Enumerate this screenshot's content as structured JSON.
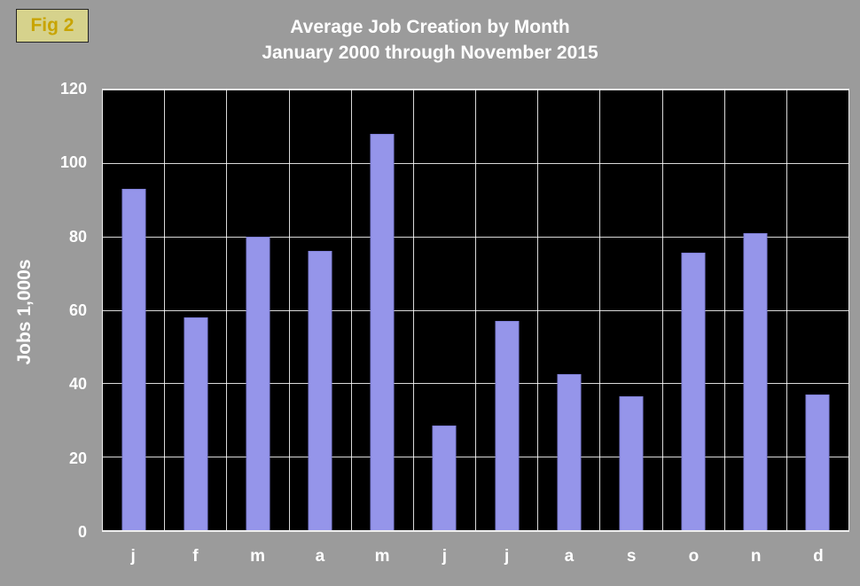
{
  "badge": {
    "label": "Fig 2"
  },
  "chart_data": {
    "type": "bar",
    "title": "Average Job Creation by Month",
    "subtitle": "January 2000 through November 2015",
    "categories": [
      "j",
      "f",
      "m",
      "a",
      "m",
      "j",
      "j",
      "a",
      "s",
      "o",
      "n",
      "d"
    ],
    "values": [
      93,
      58,
      80,
      76,
      108,
      28.5,
      57,
      42.5,
      36.5,
      75.5,
      81,
      37
    ],
    "xlabel": "",
    "ylabel": "Jobs 1,000s",
    "ylim": [
      0,
      120
    ],
    "ytick_step": 20,
    "yticks": [
      120,
      100,
      80,
      60,
      40,
      20,
      0
    ],
    "grid": true,
    "legend": "none",
    "colors": {
      "bar": "#9595ea",
      "plot_background": "#000000",
      "page_background": "#9b9b9b",
      "text": "#ffffff",
      "badge_background": "#d6d28c",
      "badge_text": "#c8a400"
    }
  }
}
